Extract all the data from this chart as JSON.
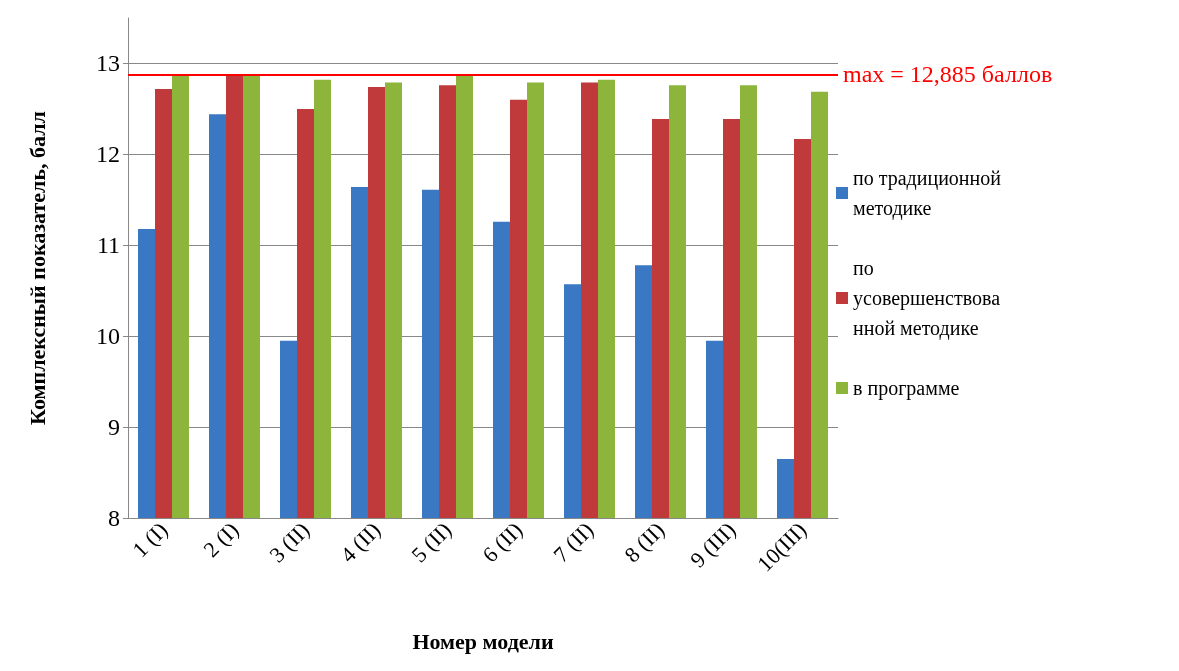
{
  "chart_data": {
    "type": "bar",
    "ylabel": "Комплексный показатель, балл",
    "xlabel": "Номер модели",
    "categories": [
      "1 (I)",
      "2 (I)",
      "3 (II)",
      "4 (II)",
      "5 (II)",
      "6 (II)",
      "7 (II)",
      "8 (II)",
      "9 (III)",
      "10(III)"
    ],
    "series": [
      {
        "name": "по традиционной методике",
        "color": "#3a78c4",
        "values": [
          11.18,
          12.44,
          9.95,
          11.64,
          11.61,
          11.26,
          10.57,
          10.78,
          9.95,
          8.65
        ]
      },
      {
        "name": "по усовершенствованной методике",
        "color": "#c0393b",
        "values": [
          12.72,
          12.88,
          12.5,
          12.74,
          12.76,
          12.6,
          12.79,
          12.39,
          12.39,
          12.17
        ]
      },
      {
        "name": "в программе",
        "color": "#8db53c",
        "values": [
          12.88,
          12.88,
          12.82,
          12.79,
          12.88,
          12.79,
          12.82,
          12.76,
          12.76,
          12.69
        ]
      }
    ],
    "ylim": [
      8,
      13.5
    ],
    "yticks": [
      8,
      9,
      10,
      11,
      12,
      13
    ],
    "grid": "y",
    "legend": "right",
    "ref_lines": [
      {
        "axis": "y",
        "value": 12.885,
        "label": "max = 12,885 баллов",
        "color": "#ff0000"
      }
    ]
  }
}
